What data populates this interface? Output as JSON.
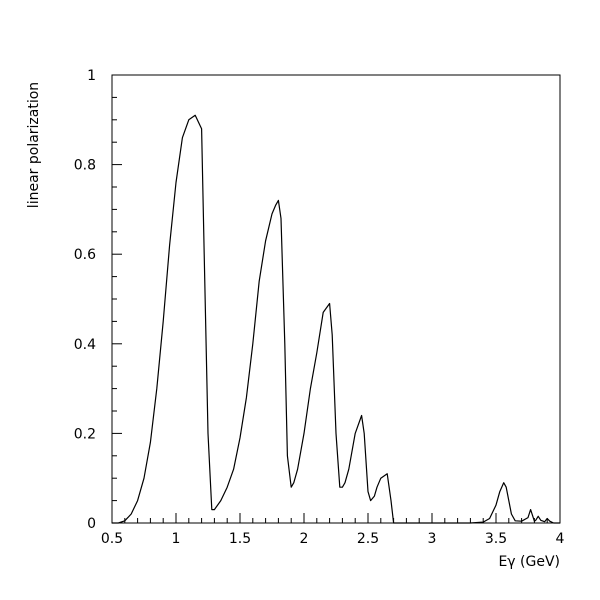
{
  "chart_data": {
    "type": "line",
    "title": "",
    "xlabel": "Eγ (GeV)",
    "ylabel": "linear polarization",
    "xlim": [
      0.5,
      4
    ],
    "ylim": [
      0,
      1
    ],
    "x_ticks": [
      0.5,
      1,
      1.5,
      2,
      2.5,
      3,
      3.5,
      4
    ],
    "x_tick_labels": [
      "0.5",
      "1",
      "1.5",
      "2",
      "2.5",
      "3",
      "3.5",
      "4"
    ],
    "y_ticks": [
      0,
      0.2,
      0.4,
      0.6,
      0.8,
      1
    ],
    "y_tick_labels": [
      "0",
      "0.2",
      "0.4",
      "0.6",
      "0.8",
      "1"
    ],
    "grid": false,
    "series": [
      {
        "x": [
          0.5,
          0.55,
          0.6,
          0.65,
          0.7,
          0.75,
          0.8,
          0.85,
          0.9,
          0.95,
          1.0,
          1.05,
          1.1,
          1.15,
          1.2,
          1.22,
          1.25,
          1.28,
          1.3,
          1.35,
          1.4,
          1.45,
          1.5,
          1.55,
          1.6,
          1.65,
          1.7,
          1.75,
          1.78,
          1.8,
          1.82,
          1.85,
          1.87,
          1.9,
          1.92,
          1.95,
          2.0,
          2.05,
          2.1,
          2.15,
          2.2,
          2.22,
          2.25,
          2.28,
          2.3,
          2.32,
          2.35,
          2.4,
          2.45,
          2.47,
          2.5,
          2.52,
          2.55,
          2.57,
          2.6,
          2.65,
          2.68,
          2.7,
          2.72,
          2.75,
          2.8,
          2.9,
          3.0,
          3.1,
          3.2,
          3.3,
          3.4,
          3.45,
          3.5,
          3.53,
          3.56,
          3.58,
          3.6,
          3.62,
          3.65,
          3.7,
          3.75,
          3.77,
          3.8,
          3.81,
          3.83,
          3.85,
          3.88,
          3.9,
          3.92,
          3.95,
          4.0
        ],
        "y": [
          0,
          0.0,
          0.005,
          0.02,
          0.05,
          0.1,
          0.18,
          0.3,
          0.45,
          0.62,
          0.76,
          0.86,
          0.9,
          0.91,
          0.88,
          0.6,
          0.2,
          0.03,
          0.03,
          0.05,
          0.08,
          0.12,
          0.19,
          0.28,
          0.4,
          0.54,
          0.63,
          0.69,
          0.71,
          0.72,
          0.68,
          0.4,
          0.15,
          0.08,
          0.09,
          0.12,
          0.2,
          0.3,
          0.38,
          0.47,
          0.49,
          0.42,
          0.2,
          0.08,
          0.08,
          0.09,
          0.12,
          0.2,
          0.24,
          0.2,
          0.07,
          0.05,
          0.06,
          0.08,
          0.1,
          0.11,
          0.05,
          0.0,
          0.0,
          0.0,
          0.0,
          0.0,
          0.0,
          0.0,
          0.0,
          0.0,
          0.002,
          0.01,
          0.04,
          0.07,
          0.09,
          0.08,
          0.05,
          0.02,
          0.005,
          0.004,
          0.012,
          0.03,
          0.004,
          0.006,
          0.015,
          0.006,
          0.003,
          0.01,
          0.004,
          0.0,
          0.0
        ]
      }
    ]
  }
}
